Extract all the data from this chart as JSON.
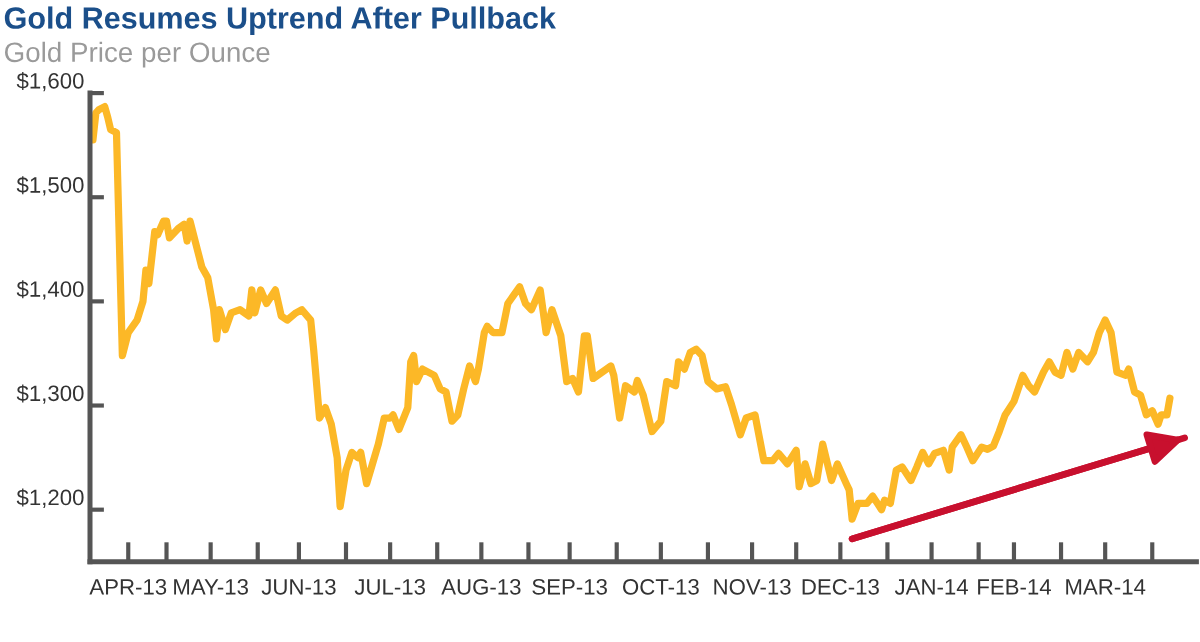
{
  "chart_data": {
    "type": "line",
    "title": "Gold Resumes Uptrend After Pullback",
    "subtitle": "Gold Price per Ounce",
    "x": [
      "2013-04-06",
      "2013-04-07",
      "2013-04-08",
      "2013-04-10",
      "2013-04-11",
      "2013-04-12",
      "2013-04-14",
      "2013-04-16",
      "2013-04-18",
      "2013-04-21",
      "2013-04-23",
      "2013-04-24",
      "2013-04-25",
      "2013-04-27",
      "2013-04-28",
      "2013-04-30",
      "2013-05-01",
      "2013-05-02",
      "2013-05-05",
      "2013-05-07",
      "2013-05-08",
      "2013-05-09",
      "2013-05-11",
      "2013-05-13",
      "2013-05-15",
      "2013-05-17",
      "2013-05-18",
      "2013-05-19",
      "2013-05-21",
      "2013-05-23",
      "2013-05-26",
      "2013-05-29",
      "2013-05-30",
      "2013-05-31",
      "2013-06-02",
      "2013-06-04",
      "2013-06-07",
      "2013-06-09",
      "2013-06-11",
      "2013-06-14",
      "2013-06-16",
      "2013-06-19",
      "2013-06-20",
      "2013-06-22",
      "2013-06-24",
      "2013-06-26",
      "2013-06-28",
      "2013-06-29",
      "2013-07-01",
      "2013-07-03",
      "2013-07-05",
      "2013-07-06",
      "2013-07-08",
      "2013-07-10",
      "2013-07-12",
      "2013-07-14",
      "2013-07-16",
      "2013-07-17",
      "2013-07-19",
      "2013-07-22",
      "2013-07-23",
      "2013-07-24",
      "2013-07-25",
      "2013-07-27",
      "2013-07-31",
      "2013-08-02",
      "2013-08-04",
      "2013-08-06",
      "2013-08-08",
      "2013-08-10",
      "2013-08-12",
      "2013-08-14",
      "2013-08-15",
      "2013-08-17",
      "2013-08-18",
      "2013-08-20",
      "2013-08-23",
      "2013-08-25",
      "2013-08-29",
      "2013-08-31",
      "2013-09-02",
      "2013-09-05",
      "2013-09-07",
      "2013-09-09",
      "2013-09-12",
      "2013-09-14",
      "2013-09-16",
      "2013-09-18",
      "2013-09-20",
      "2013-09-21",
      "2013-09-23",
      "2013-09-26",
      "2013-09-29",
      "2013-09-30",
      "2013-10-02",
      "2013-10-04",
      "2013-10-07",
      "2013-10-08",
      "2013-10-10",
      "2013-10-13",
      "2013-10-16",
      "2013-10-18",
      "2013-10-21",
      "2013-10-22",
      "2013-10-24",
      "2013-10-26",
      "2013-10-28",
      "2013-10-30",
      "2013-11-01",
      "2013-11-04",
      "2013-11-07",
      "2013-11-09",
      "2013-11-12",
      "2013-11-14",
      "2013-11-17",
      "2013-11-20",
      "2013-11-23",
      "2013-11-25",
      "2013-11-28",
      "2013-12-01",
      "2013-12-02",
      "2013-12-04",
      "2013-12-06",
      "2013-12-08",
      "2013-12-10",
      "2013-12-13",
      "2013-12-15",
      "2013-12-18",
      "2013-12-19",
      "2013-12-20",
      "2013-12-22",
      "2013-12-25",
      "2013-12-27",
      "2013-12-30",
      "2013-12-31",
      "2014-01-02",
      "2014-01-04",
      "2014-01-06",
      "2014-01-09",
      "2014-01-11",
      "2014-01-13",
      "2014-01-15",
      "2014-01-17",
      "2014-01-20",
      "2014-01-22",
      "2014-01-23",
      "2014-01-26",
      "2014-01-28",
      "2014-01-30",
      "2014-02-02",
      "2014-02-04",
      "2014-02-06",
      "2014-02-08",
      "2014-02-10",
      "2014-02-13",
      "2014-02-16",
      "2014-02-18",
      "2014-02-20",
      "2014-02-23",
      "2014-02-25",
      "2014-02-27",
      "2014-03-01",
      "2014-03-03",
      "2014-03-05",
      "2014-03-07",
      "2014-03-10",
      "2014-03-12",
      "2014-03-14",
      "2014-03-16",
      "2014-03-18",
      "2014-03-20",
      "2014-03-23",
      "2014-03-24",
      "2014-03-26",
      "2014-03-28",
      "2014-03-30",
      "2014-04-01",
      "2014-04-03",
      "2014-04-04",
      "2014-04-06",
      "2014-04-07"
    ],
    "series": [
      {
        "color": "#fcb827",
        "values": [
          1555,
          1581,
          1584,
          1587,
          1577,
          1565,
          1562,
          1348,
          1370,
          1382,
          1400,
          1430,
          1417,
          1467,
          1464,
          1477,
          1477,
          1461,
          1470,
          1474,
          1458,
          1477,
          1455,
          1433,
          1423,
          1392,
          1364,
          1392,
          1373,
          1389,
          1392,
          1386,
          1411,
          1389,
          1411,
          1398,
          1411,
          1386,
          1382,
          1389,
          1392,
          1382,
          1354,
          1288,
          1298,
          1282,
          1250,
          1203,
          1238,
          1255,
          1250,
          1255,
          1225,
          1244,
          1263,
          1288,
          1288,
          1291,
          1277,
          1298,
          1342,
          1348,
          1323,
          1335,
          1329,
          1316,
          1313,
          1285,
          1291,
          1316,
          1338,
          1323,
          1335,
          1370,
          1376,
          1370,
          1370,
          1398,
          1414,
          1398,
          1392,
          1411,
          1370,
          1392,
          1367,
          1323,
          1326,
          1313,
          1367,
          1367,
          1326,
          1332,
          1338,
          1329,
          1288,
          1319,
          1313,
          1324,
          1310,
          1275,
          1285,
          1323,
          1319,
          1342,
          1335,
          1351,
          1354,
          1348,
          1323,
          1316,
          1318,
          1301,
          1272,
          1288,
          1291,
          1247,
          1247,
          1254,
          1244,
          1257,
          1222,
          1244,
          1225,
          1228,
          1263,
          1228,
          1244,
          1225,
          1219,
          1191,
          1206,
          1206,
          1213,
          1200,
          1209,
          1206,
          1238,
          1241,
          1228,
          1241,
          1255,
          1244,
          1254,
          1257,
          1238,
          1260,
          1272,
          1260,
          1247,
          1260,
          1258,
          1261,
          1275,
          1291,
          1304,
          1329,
          1319,
          1313,
          1332,
          1342,
          1332,
          1329,
          1351,
          1335,
          1351,
          1342,
          1351,
          1370,
          1382,
          1370,
          1332,
          1329,
          1335,
          1313,
          1310,
          1291,
          1295,
          1282,
          1291,
          1291,
          1307
        ]
      },
      {
        "type": "line",
        "color": "#c8102e",
        "x": [
          "2013-12-20",
          "2014-04-12"
        ],
        "values": [
          1172,
          1269
        ]
      }
    ],
    "xlim": [
      "2013-04-05",
      "2014-04-16"
    ],
    "xticks": [
      {
        "value": "2013-04-18",
        "label": "APR-13"
      },
      {
        "value": "2013-05-01",
        "label": null
      },
      {
        "value": "2013-05-16",
        "label": "MAY-13"
      },
      {
        "value": "2013-06-01",
        "label": null
      },
      {
        "value": "2013-06-15",
        "label": "JUN-13"
      },
      {
        "value": "2013-07-01",
        "label": null
      },
      {
        "value": "2013-07-16",
        "label": "JUL-13"
      },
      {
        "value": "2013-08-01",
        "label": null
      },
      {
        "value": "2013-08-16",
        "label": "AUG-13"
      },
      {
        "value": "2013-09-01",
        "label": null
      },
      {
        "value": "2013-09-15",
        "label": "SEP-13"
      },
      {
        "value": "2013-10-01",
        "label": null
      },
      {
        "value": "2013-10-16",
        "label": "OCT-13"
      },
      {
        "value": "2013-11-01",
        "label": null
      },
      {
        "value": "2013-11-16",
        "label": "NOV-13"
      },
      {
        "value": "2013-12-01",
        "label": null
      },
      {
        "value": "2013-12-16",
        "label": "DEC-13"
      },
      {
        "value": "2014-01-01",
        "label": null
      },
      {
        "value": "2014-01-16",
        "label": "JAN-14"
      },
      {
        "value": "2014-02-01",
        "label": null
      },
      {
        "value": "2014-02-13",
        "label": "FEB-14"
      },
      {
        "value": "2014-03-01",
        "label": null
      },
      {
        "value": "2014-03-16",
        "label": "MAR-14"
      },
      {
        "value": "2014-04-01",
        "label": null
      }
    ],
    "ylim": [
      1150,
      1600
    ],
    "yticks": [
      {
        "value": 1200,
        "label": "$1,200"
      },
      {
        "value": 1300,
        "label": "$1,300"
      },
      {
        "value": 1400,
        "label": "$1,400"
      },
      {
        "value": 1500,
        "label": "$1,500"
      },
      {
        "value": 1600,
        "label": "$1,600"
      }
    ],
    "grid": false,
    "legend": false,
    "marker": "none",
    "line_style": "solid"
  }
}
